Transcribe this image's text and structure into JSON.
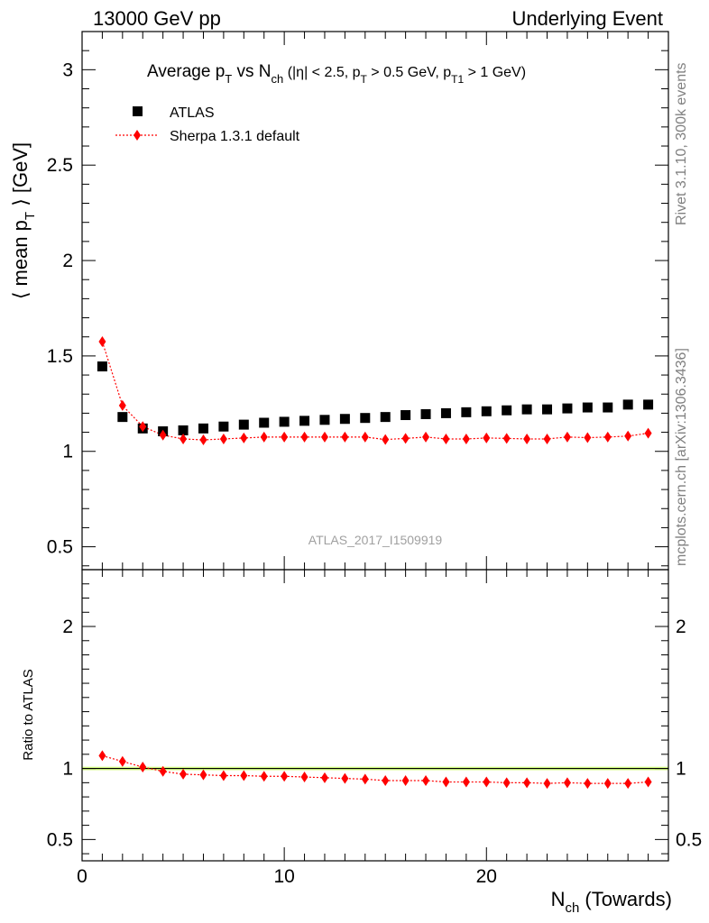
{
  "header": {
    "left": "13000 GeV pp",
    "right": "Underlying Event"
  },
  "side_text": {
    "rivet": "Rivet 3.1.10,  300k events",
    "mcplots": "mcplots.cern.ch [arXiv:1306.3436]"
  },
  "watermark": "ATLAS_2017_I1509919",
  "colors": {
    "data": "#000000",
    "mc": "#ff0000",
    "band": "#ccff66"
  },
  "chart_data": [
    {
      "type": "scatter",
      "panel": "main",
      "title": {
        "t1": "Average p",
        "t1_sub": "T",
        "t2": " vs N",
        "t2_sub": "ch",
        "t3": " (|η| < 2.5, p",
        "t3_sub": "T",
        "t4": " > 0.5 GeV, p",
        "t4_sub": "T1",
        "t5": " > 1 GeV)"
      },
      "ylabel": {
        "p1": "⟨ mean p",
        "sub": "T",
        "p2": " ⟩ [GeV]"
      },
      "xlim": [
        0,
        29
      ],
      "ylim": [
        0.38,
        3.2
      ],
      "yticks": [
        {
          "v": 0.5,
          "label": "0.5"
        },
        {
          "v": 1,
          "label": "1"
        },
        {
          "v": 1.5,
          "label": "1.5"
        },
        {
          "v": 2,
          "label": "2"
        },
        {
          "v": 2.5,
          "label": "2.5"
        },
        {
          "v": 3,
          "label": "3"
        }
      ],
      "legend_position": "top-left",
      "x": [
        1,
        2,
        3,
        4,
        5,
        6,
        7,
        8,
        9,
        10,
        11,
        12,
        13,
        14,
        15,
        16,
        17,
        18,
        19,
        20,
        21,
        22,
        23,
        24,
        25,
        26,
        27,
        28
      ],
      "series": [
        {
          "name": "ATLAS",
          "marker": "square",
          "values": [
            1.445,
            1.18,
            1.12,
            1.105,
            1.11,
            1.12,
            1.13,
            1.14,
            1.15,
            1.155,
            1.16,
            1.165,
            1.17,
            1.175,
            1.18,
            1.19,
            1.195,
            1.2,
            1.205,
            1.21,
            1.215,
            1.22,
            1.22,
            1.225,
            1.23,
            1.23,
            1.245,
            1.245
          ]
        },
        {
          "name": "Sherpa 1.3.1 default",
          "marker": "diamond",
          "values": [
            1.575,
            1.24,
            1.13,
            1.085,
            1.065,
            1.06,
            1.065,
            1.07,
            1.075,
            1.075,
            1.075,
            1.075,
            1.075,
            1.075,
            1.062,
            1.068,
            1.075,
            1.065,
            1.065,
            1.07,
            1.068,
            1.065,
            1.065,
            1.075,
            1.072,
            1.075,
            1.08,
            1.095
          ]
        }
      ]
    },
    {
      "type": "scatter",
      "panel": "ratio",
      "ylabel": "Ratio to ATLAS",
      "xlabel": {
        "p1": "N",
        "sub": "ch",
        "p2": " (Towards)"
      },
      "xlim": [
        0,
        29
      ],
      "ylim": [
        0.35,
        2.4
      ],
      "yticks": [
        {
          "v": 0.5,
          "label": "0.5"
        },
        {
          "v": 1,
          "label": "1"
        },
        {
          "v": 2,
          "label": "2"
        }
      ],
      "xticks": [
        {
          "v": 0,
          "label": "0"
        },
        {
          "v": 10,
          "label": "10"
        },
        {
          "v": 20,
          "label": "20"
        }
      ],
      "x": [
        1,
        2,
        3,
        4,
        5,
        6,
        7,
        8,
        9,
        10,
        11,
        12,
        13,
        14,
        15,
        16,
        17,
        18,
        19,
        20,
        21,
        22,
        23,
        24,
        25,
        26,
        27,
        28
      ],
      "band_halfwidth": 0.012,
      "series": [
        {
          "name": "Sherpa 1.3.1 default",
          "marker": "diamond",
          "values": [
            1.09,
            1.05,
            1.01,
            0.98,
            0.96,
            0.955,
            0.95,
            0.95,
            0.945,
            0.945,
            0.94,
            0.935,
            0.93,
            0.925,
            0.915,
            0.915,
            0.915,
            0.905,
            0.905,
            0.905,
            0.9,
            0.9,
            0.895,
            0.9,
            0.895,
            0.895,
            0.895,
            0.905
          ]
        }
      ]
    }
  ]
}
